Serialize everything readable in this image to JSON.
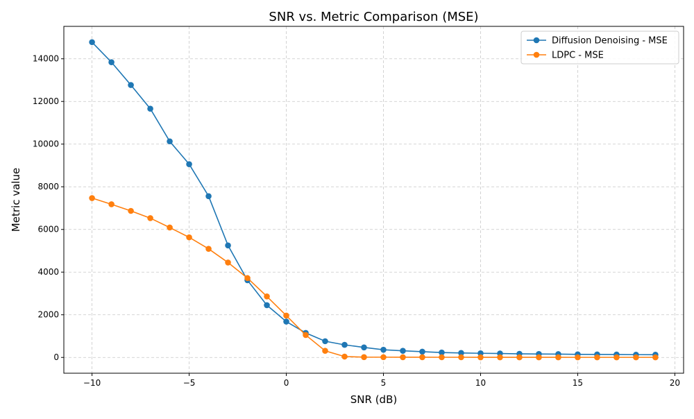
{
  "chart_data": {
    "type": "line",
    "title": "SNR vs. Metric Comparison (MSE)",
    "xlabel": "SNR (dB)",
    "ylabel": "Metric value",
    "xlim": [
      -11.45,
      20.45
    ],
    "ylim": [
      -740,
      15520
    ],
    "xticks": [
      -10,
      -5,
      0,
      5,
      10,
      15,
      20
    ],
    "xtick_labels": [
      "−10",
      "−5",
      "0",
      "5",
      "10",
      "15",
      "20"
    ],
    "yticks": [
      0,
      2000,
      4000,
      6000,
      8000,
      10000,
      12000,
      14000
    ],
    "ytick_labels": [
      "0",
      "2000",
      "4000",
      "6000",
      "8000",
      "10000",
      "12000",
      "14000"
    ],
    "grid": true,
    "legend_position": "top-right",
    "x": [
      -10,
      -9,
      -8,
      -7,
      -6,
      -5,
      -4,
      -3,
      -2,
      -1,
      0,
      1,
      2,
      3,
      4,
      5,
      6,
      7,
      8,
      9,
      10,
      11,
      12,
      13,
      14,
      15,
      16,
      17,
      18,
      19
    ],
    "series": [
      {
        "name": "Diffusion Denoising - MSE",
        "color": "#1f77b4",
        "values": [
          14780,
          13840,
          12770,
          11660,
          10130,
          9060,
          7560,
          5250,
          3620,
          2450,
          1680,
          1150,
          760,
          590,
          470,
          360,
          310,
          270,
          230,
          210,
          195,
          185,
          170,
          160,
          155,
          145,
          140,
          135,
          130,
          128
        ]
      },
      {
        "name": "LDPC - MSE",
        "color": "#ff7f0e",
        "values": [
          7470,
          7180,
          6870,
          6530,
          6090,
          5630,
          5090,
          4450,
          3720,
          2860,
          1960,
          1050,
          310,
          40,
          15,
          12,
          10,
          10,
          8,
          8,
          6,
          6,
          5,
          5,
          5,
          4,
          4,
          4,
          4,
          4
        ]
      }
    ]
  }
}
